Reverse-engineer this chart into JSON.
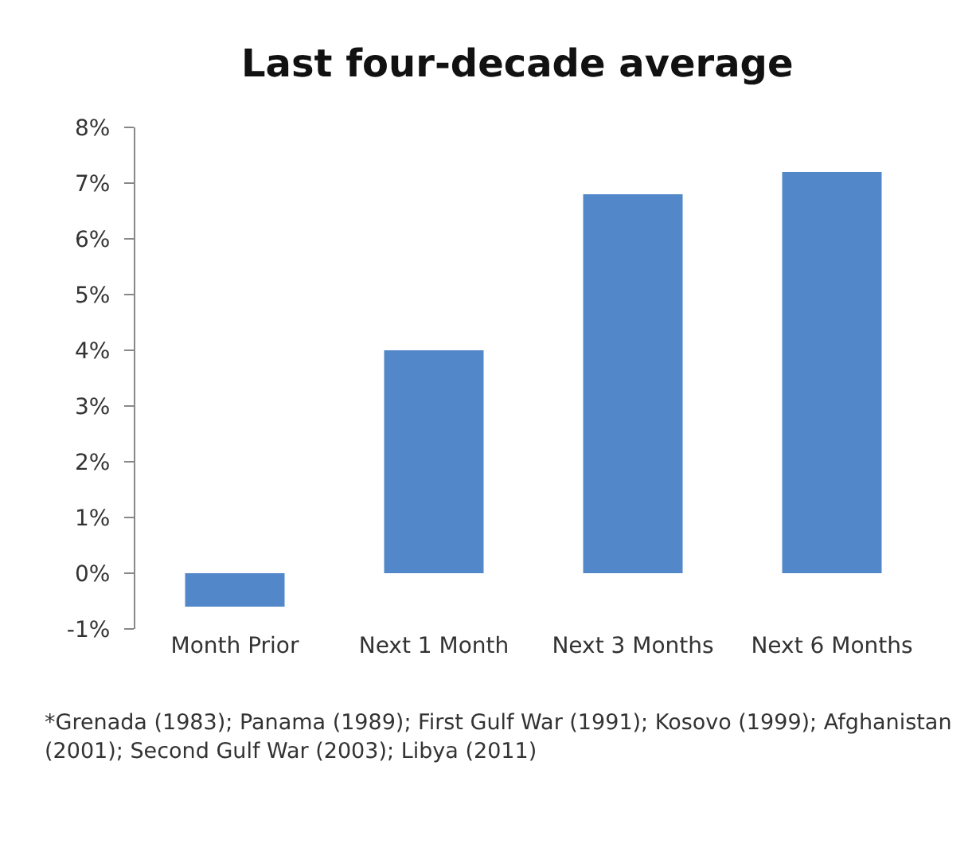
{
  "chart_data": {
    "type": "bar",
    "title": "Last four-decade average",
    "categories": [
      "Month Prior",
      "Next 1 Month",
      "Next 3 Months",
      "Next 6 Months"
    ],
    "values": [
      -0.6,
      4.0,
      6.8,
      7.2
    ],
    "color": "#5288c9",
    "ylim": [
      -1,
      8
    ],
    "yticks": [
      {
        "value": -1,
        "label": "-1%"
      },
      {
        "value": 0,
        "label": "0%"
      },
      {
        "value": 1,
        "label": "1%"
      },
      {
        "value": 2,
        "label": "2%"
      },
      {
        "value": 3,
        "label": "3%"
      },
      {
        "value": 4,
        "label": "4%"
      },
      {
        "value": 5,
        "label": "5%"
      },
      {
        "value": 6,
        "label": "6%"
      },
      {
        "value": 7,
        "label": "7%"
      },
      {
        "value": 8,
        "label": "8%"
      }
    ],
    "grid": false,
    "annotations": [
      "*Grenada (1983); Panama (1989); First Gulf War (1991); Kosovo (1999); Afghanistan (2001); Second Gulf War (2003); Libya (2011)"
    ]
  }
}
